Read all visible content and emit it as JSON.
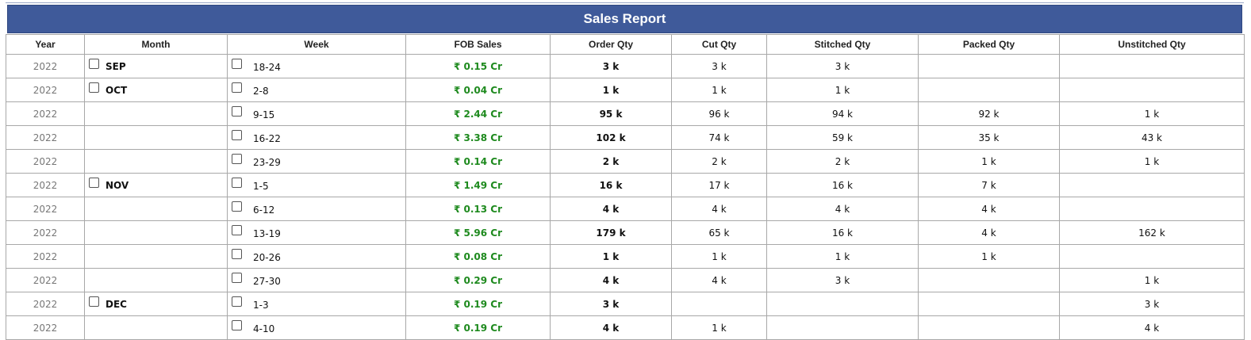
{
  "report": {
    "title": "Sales Report"
  },
  "columns": [
    "Year",
    "Month",
    "Week",
    "FOB Sales",
    "Order Qty",
    "Cut Qty",
    "Stitched Qty",
    "Packed Qty",
    "Unstitched Qty"
  ],
  "rows": [
    {
      "year": "2022",
      "month": "SEP",
      "week": "18-24",
      "fob": "₹ 0.15 Cr",
      "order": "3 k",
      "cut": "3 k",
      "stitched": "3 k",
      "packed": "",
      "unstitched": ""
    },
    {
      "year": "2022",
      "month": "OCT",
      "week": "2-8",
      "fob": "₹ 0.04 Cr",
      "order": "1 k",
      "cut": "1 k",
      "stitched": "1 k",
      "packed": "",
      "unstitched": ""
    },
    {
      "year": "2022",
      "month": "",
      "week": "9-15",
      "fob": "₹ 2.44 Cr",
      "order": "95 k",
      "cut": "96 k",
      "stitched": "94 k",
      "packed": "92 k",
      "unstitched": "1 k"
    },
    {
      "year": "2022",
      "month": "",
      "week": "16-22",
      "fob": "₹ 3.38 Cr",
      "order": "102 k",
      "cut": "74 k",
      "stitched": "59 k",
      "packed": "35 k",
      "unstitched": "43 k"
    },
    {
      "year": "2022",
      "month": "",
      "week": "23-29",
      "fob": "₹ 0.14 Cr",
      "order": "2 k",
      "cut": "2 k",
      "stitched": "2 k",
      "packed": "1 k",
      "unstitched": "1 k"
    },
    {
      "year": "2022",
      "month": "NOV",
      "week": "1-5",
      "fob": "₹ 1.49 Cr",
      "order": "16 k",
      "cut": "17 k",
      "stitched": "16 k",
      "packed": "7 k",
      "unstitched": ""
    },
    {
      "year": "2022",
      "month": "",
      "week": "6-12",
      "fob": "₹ 0.13 Cr",
      "order": "4 k",
      "cut": "4 k",
      "stitched": "4 k",
      "packed": "4 k",
      "unstitched": ""
    },
    {
      "year": "2022",
      "month": "",
      "week": "13-19",
      "fob": "₹ 5.96 Cr",
      "order": "179 k",
      "cut": "65 k",
      "stitched": "16 k",
      "packed": "4 k",
      "unstitched": "162 k"
    },
    {
      "year": "2022",
      "month": "",
      "week": "20-26",
      "fob": "₹ 0.08 Cr",
      "order": "1 k",
      "cut": "1 k",
      "stitched": "1 k",
      "packed": "1 k",
      "unstitched": ""
    },
    {
      "year": "2022",
      "month": "",
      "week": "27-30",
      "fob": "₹ 0.29 Cr",
      "order": "4 k",
      "cut": "4 k",
      "stitched": "3 k",
      "packed": "",
      "unstitched": "1 k"
    },
    {
      "year": "2022",
      "month": "DEC",
      "week": "1-3",
      "fob": "₹ 0.19 Cr",
      "order": "3 k",
      "cut": "",
      "stitched": "",
      "packed": "",
      "unstitched": "3 k"
    },
    {
      "year": "2022",
      "month": "",
      "week": "4-10",
      "fob": "₹ 0.19 Cr",
      "order": "4 k",
      "cut": "1 k",
      "stitched": "",
      "packed": "",
      "unstitched": "4 k"
    }
  ]
}
